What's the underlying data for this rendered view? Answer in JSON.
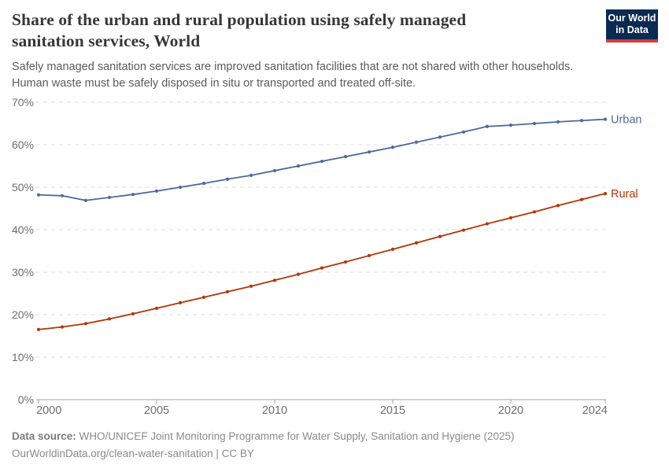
{
  "header": {
    "title_lines": [
      "Share of the urban and rural population using safely managed",
      "sanitation services, World"
    ],
    "subtitle_lines": [
      "Safely managed sanitation services are improved sanitation facilities that are not shared with other households.",
      "Human waste must be safely disposed in situ or transported and treated off-site."
    ],
    "logo": {
      "line1": "Our World",
      "line2": "in Data",
      "bg_color": "#0b2a51",
      "accent_color": "#d93a3f"
    }
  },
  "chart_data": {
    "type": "line",
    "x": [
      2000,
      2001,
      2002,
      2003,
      2004,
      2005,
      2006,
      2007,
      2008,
      2009,
      2010,
      2011,
      2012,
      2013,
      2014,
      2015,
      2016,
      2017,
      2018,
      2019,
      2020,
      2021,
      2022,
      2023,
      2024
    ],
    "series": [
      {
        "name": "Urban",
        "color": "#4C6A9C",
        "values": [
          48.2,
          48.0,
          46.9,
          47.6,
          48.3,
          49.1,
          50.0,
          50.9,
          51.9,
          52.8,
          53.9,
          55.0,
          56.1,
          57.2,
          58.3,
          59.4,
          60.6,
          61.8,
          63.0,
          64.3,
          64.6,
          65.0,
          65.4,
          65.7,
          66.0
        ]
      },
      {
        "name": "Rural",
        "color": "#B13507",
        "values": [
          16.5,
          17.1,
          17.9,
          19.0,
          20.2,
          21.5,
          22.8,
          24.1,
          25.4,
          26.7,
          28.1,
          29.5,
          31.0,
          32.4,
          33.9,
          35.4,
          36.9,
          38.4,
          39.9,
          41.4,
          42.8,
          44.2,
          45.7,
          47.1,
          48.5
        ]
      }
    ],
    "ylim": [
      0,
      70
    ],
    "ytick_step": 10,
    "ytick_suffix": "%",
    "xticks": [
      2000,
      2005,
      2010,
      2015,
      2020,
      2024
    ],
    "grid": true,
    "legend_position": "end-of-line",
    "grid_color": "#dcdcdc",
    "axis_color": "#a3a3a3",
    "tick_label_color": "#6e6e6e"
  },
  "footer": {
    "datasource_label": "Data source:",
    "datasource_text": "WHO/UNICEF Joint Monitoring Programme for Water Supply, Sanitation and Hygiene (2025)",
    "link_line": "OurWorldinData.org/clean-water-sanitation | CC BY"
  }
}
